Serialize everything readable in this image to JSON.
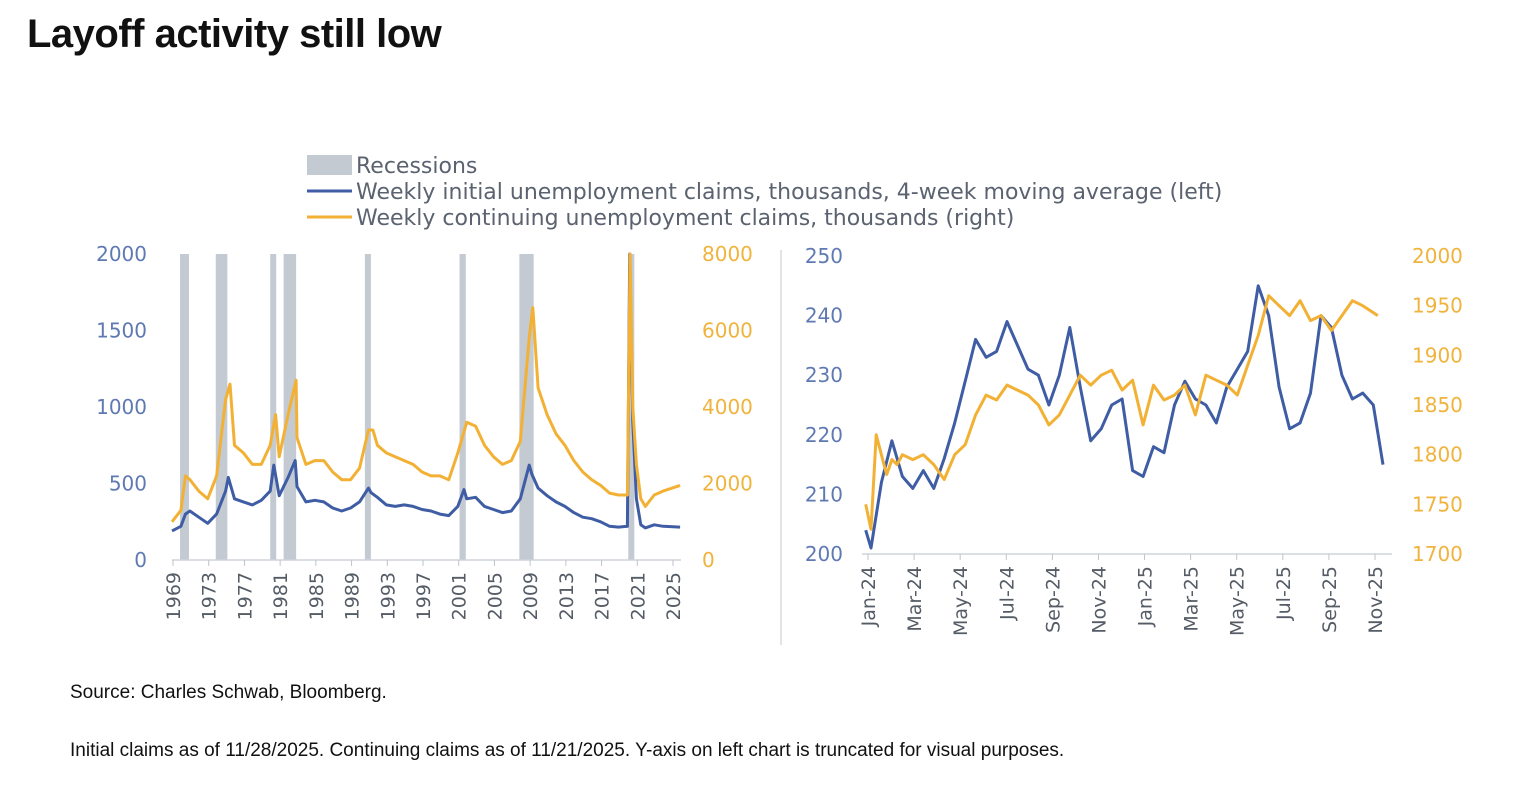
{
  "title": "Layoff activity still low",
  "source": "Source: Charles Schwab, Bloomberg.",
  "footnote": "Initial claims as of 11/28/2025. Continuing claims as of 11/21/2025. Y-axis on left chart is truncated for visual purposes.",
  "legend": [
    {
      "label": "Recessions",
      "type": "rect",
      "color": "#c4cad2"
    },
    {
      "label": "Weekly initial unemployment claims, thousands, 4-week moving average (left)",
      "type": "line",
      "color": "#3f5da4"
    },
    {
      "label": "Weekly continuing unemployment claims, thousands (right)",
      "type": "line",
      "color": "#f2b134"
    }
  ],
  "colors": {
    "initial": "#3f5da4",
    "continuing": "#f2b134",
    "recession": "#c4cad2"
  },
  "chart_data": [
    {
      "type": "line",
      "x_range": [
        1969,
        2026
      ],
      "x_ticks": [
        "1969",
        "1973",
        "1977",
        "1981",
        "1985",
        "1989",
        "1993",
        "1997",
        "2001",
        "2005",
        "2009",
        "2013",
        "2017",
        "2021",
        "2025"
      ],
      "y_left": {
        "min": 0,
        "max": 2000,
        "ticks": [
          "0",
          "500",
          "1000",
          "1500",
          "2000"
        ]
      },
      "y_right": {
        "min": 0,
        "max": 8000,
        "ticks": [
          "0",
          "2000",
          "4000",
          "6000",
          "8000"
        ]
      },
      "recessions": [
        [
          1969.9,
          1970.9
        ],
        [
          1973.9,
          1975.2
        ],
        [
          1980.0,
          1980.5
        ],
        [
          1981.5,
          1982.9
        ],
        [
          1990.6,
          1991.2
        ],
        [
          2001.2,
          2001.9
        ],
        [
          2007.9,
          2009.5
        ],
        [
          2020.1,
          2020.4
        ]
      ],
      "series": [
        {
          "axis": "left",
          "x": [
            1969,
            1970,
            1970.5,
            1971,
            1972,
            1973,
            1974,
            1975,
            1975.3,
            1976,
            1977,
            1978,
            1979,
            1980,
            1980.4,
            1981,
            1982,
            1982.8,
            1983,
            1984,
            1985,
            1986,
            1987,
            1988,
            1989,
            1990,
            1991,
            1991.3,
            1992,
            1993,
            1994,
            1995,
            1996,
            1997,
            1998,
            1999,
            2000,
            2001,
            2001.7,
            2002,
            2003,
            2004,
            2005,
            2006,
            2007,
            2008,
            2009,
            2009.3,
            2010,
            2011,
            2012,
            2013,
            2014,
            2015,
            2016,
            2017,
            2018,
            2019,
            2020,
            2020.25,
            2020.6,
            2021,
            2021.5,
            2022,
            2023,
            2024,
            2025.9
          ],
          "y": [
            190,
            220,
            300,
            320,
            280,
            240,
            300,
            450,
            540,
            400,
            380,
            360,
            390,
            450,
            620,
            420,
            540,
            650,
            480,
            380,
            390,
            380,
            340,
            320,
            340,
            380,
            470,
            440,
            410,
            360,
            350,
            360,
            350,
            330,
            320,
            300,
            290,
            350,
            460,
            400,
            410,
            350,
            330,
            310,
            320,
            400,
            620,
            560,
            470,
            420,
            380,
            350,
            310,
            280,
            270,
            250,
            220,
            215,
            220,
            2000,
            900,
            400,
            230,
            210,
            230,
            220,
            215
          ]
        },
        {
          "axis": "right",
          "x": [
            1969,
            1970,
            1970.5,
            1971,
            1972,
            1973,
            1974,
            1975,
            1975.5,
            1976,
            1977,
            1978,
            1979,
            1980,
            1980.6,
            1981,
            1982,
            1982.9,
            1983,
            1984,
            1985,
            1986,
            1987,
            1988,
            1989,
            1990,
            1991,
            1991.5,
            1992,
            1993,
            1994,
            1995,
            1996,
            1997,
            1998,
            1999,
            2000,
            2001,
            2002,
            2003,
            2004,
            2005,
            2006,
            2007,
            2008,
            2009,
            2009.4,
            2010,
            2011,
            2012,
            2013,
            2014,
            2015,
            2016,
            2017,
            2018,
            2019,
            2020,
            2020.3,
            2020.6,
            2021,
            2021.5,
            2022,
            2023,
            2024,
            2025.9
          ],
          "y": [
            1000,
            1300,
            2200,
            2100,
            1800,
            1600,
            2200,
            4200,
            4600,
            3000,
            2800,
            2500,
            2500,
            3000,
            3800,
            2700,
            3800,
            4700,
            3200,
            2500,
            2600,
            2600,
            2300,
            2100,
            2100,
            2400,
            3400,
            3400,
            3000,
            2800,
            2700,
            2600,
            2500,
            2300,
            2200,
            2200,
            2100,
            2800,
            3600,
            3500,
            3000,
            2700,
            2500,
            2600,
            3100,
            5800,
            6600,
            4500,
            3800,
            3300,
            3000,
            2600,
            2300,
            2100,
            1950,
            1750,
            1700,
            1700,
            8000,
            4000,
            2500,
            1600,
            1400,
            1700,
            1800,
            1950
          ]
        }
      ]
    },
    {
      "type": "line",
      "x_ticks": [
        "Jan-24",
        "Mar-24",
        "May-24",
        "Jul-24",
        "Sep-24",
        "Nov-24",
        "Jan-25",
        "Mar-25",
        "May-25",
        "Jul-25",
        "Sep-25",
        "Nov-25"
      ],
      "x_range": [
        "2024-01-01",
        "2025-12-10"
      ],
      "y_left": {
        "min": 200,
        "max": 250,
        "ticks": [
          "200",
          "210",
          "220",
          "230",
          "240",
          "250"
        ]
      },
      "y_right": {
        "min": 1700,
        "max": 2000,
        "ticks": [
          "1700",
          "1750",
          "1800",
          "1850",
          "1900",
          "1950",
          "2000"
        ]
      },
      "series": [
        {
          "axis": "left",
          "x": [
            "2024-01-06",
            "2024-01-13",
            "2024-01-27",
            "2024-02-10",
            "2024-02-24",
            "2024-03-09",
            "2024-03-23",
            "2024-04-06",
            "2024-04-20",
            "2024-05-04",
            "2024-05-18",
            "2024-06-01",
            "2024-06-15",
            "2024-06-29",
            "2024-07-13",
            "2024-07-27",
            "2024-08-10",
            "2024-08-24",
            "2024-09-07",
            "2024-09-21",
            "2024-10-05",
            "2024-10-19",
            "2024-11-02",
            "2024-11-16",
            "2024-11-30",
            "2024-12-14",
            "2024-12-28",
            "2025-01-11",
            "2025-01-25",
            "2025-02-08",
            "2025-02-22",
            "2025-03-08",
            "2025-03-22",
            "2025-04-05",
            "2025-04-19",
            "2025-05-03",
            "2025-05-17",
            "2025-05-31",
            "2025-06-14",
            "2025-06-28",
            "2025-07-12",
            "2025-07-26",
            "2025-08-09",
            "2025-08-23",
            "2025-09-06",
            "2025-09-20",
            "2025-10-04",
            "2025-10-18",
            "2025-11-01",
            "2025-11-15",
            "2025-11-28"
          ],
          "y": [
            204,
            201,
            212,
            219,
            213,
            211,
            214,
            211,
            216,
            222,
            229,
            236,
            233,
            234,
            239,
            235,
            231,
            230,
            225,
            230,
            238,
            228,
            219,
            221,
            225,
            226,
            214,
            213,
            218,
            217,
            225,
            229,
            226,
            225,
            222,
            228,
            231,
            234,
            245,
            240,
            228,
            221,
            222,
            227,
            240,
            238,
            230,
            226,
            227,
            225,
            215
          ]
        },
        {
          "axis": "right",
          "x": [
            "2024-01-06",
            "2024-01-13",
            "2024-01-20",
            "2024-01-27",
            "2024-02-03",
            "2024-02-10",
            "2024-02-17",
            "2024-02-24",
            "2024-03-09",
            "2024-03-23",
            "2024-04-06",
            "2024-04-20",
            "2024-05-04",
            "2024-05-18",
            "2024-06-01",
            "2024-06-15",
            "2024-06-29",
            "2024-07-13",
            "2024-07-27",
            "2024-08-10",
            "2024-08-24",
            "2024-09-07",
            "2024-09-21",
            "2024-10-05",
            "2024-10-19",
            "2024-11-02",
            "2024-11-16",
            "2024-11-30",
            "2024-12-14",
            "2024-12-28",
            "2025-01-11",
            "2025-01-25",
            "2025-02-08",
            "2025-02-22",
            "2025-03-08",
            "2025-03-22",
            "2025-04-05",
            "2025-04-19",
            "2025-05-03",
            "2025-05-17",
            "2025-05-31",
            "2025-06-14",
            "2025-06-28",
            "2025-07-12",
            "2025-07-26",
            "2025-08-09",
            "2025-08-23",
            "2025-09-06",
            "2025-09-20",
            "2025-10-04",
            "2025-10-18",
            "2025-11-01",
            "2025-11-21"
          ],
          "y": [
            1750,
            1725,
            1820,
            1800,
            1780,
            1795,
            1790,
            1800,
            1795,
            1800,
            1790,
            1775,
            1800,
            1810,
            1840,
            1860,
            1855,
            1870,
            1865,
            1860,
            1850,
            1830,
            1840,
            1860,
            1880,
            1870,
            1880,
            1885,
            1865,
            1875,
            1830,
            1870,
            1855,
            1860,
            1870,
            1840,
            1880,
            1875,
            1870,
            1860,
            1890,
            1920,
            1960,
            1950,
            1940,
            1955,
            1935,
            1940,
            1925,
            1940,
            1955,
            1950,
            1940
          ]
        }
      ]
    }
  ]
}
